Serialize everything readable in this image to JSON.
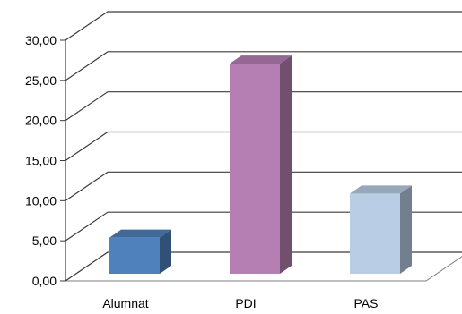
{
  "chart_data": {
    "type": "bar",
    "categories": [
      "Alumnat",
      "PDI",
      "PAS"
    ],
    "values": [
      4.5,
      26.2,
      10.0
    ],
    "series_colors": [
      "#4F81BD",
      "#B57FB3",
      "#B9CDE5"
    ],
    "ylim": [
      0,
      30
    ],
    "ytick_labels": [
      "0,00",
      "5,00",
      "10,00",
      "15,00",
      "20,00",
      "25,00",
      "30,00"
    ],
    "grid": true,
    "three_d": true,
    "title": "",
    "xlabel": "",
    "ylabel": ""
  }
}
